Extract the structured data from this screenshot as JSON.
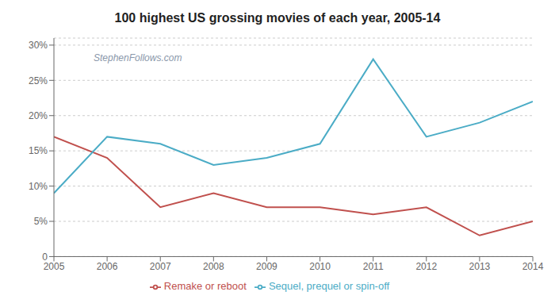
{
  "chart_data": {
    "type": "line",
    "title": "100 highest US grossing movies of each year, 2005-14",
    "annotations": [
      "StephenFollows.com"
    ],
    "x": [
      2005,
      2006,
      2007,
      2008,
      2009,
      2010,
      2011,
      2012,
      2013,
      2014
    ],
    "series": [
      {
        "name": "Remake or reboot",
        "color": "#c0504d",
        "values": [
          0.17,
          0.14,
          0.07,
          0.09,
          0.07,
          0.07,
          0.06,
          0.07,
          0.03,
          0.05
        ]
      },
      {
        "name": "Sequel, prequel or spin-off",
        "color": "#4bacc6",
        "values": [
          0.09,
          0.17,
          0.16,
          0.13,
          0.14,
          0.16,
          0.28,
          0.17,
          0.19,
          0.22
        ]
      }
    ],
    "xlim": [
      2005,
      2014
    ],
    "xticks": [
      2005,
      2006,
      2007,
      2008,
      2009,
      2010,
      2011,
      2012,
      2013,
      2014
    ],
    "ylim": [
      0,
      0.31
    ],
    "yticks": [
      0,
      {
        "value": 0.05,
        "label": "5%"
      },
      {
        "value": 0.1,
        "label": "10%"
      },
      {
        "value": 0.15,
        "label": "15%"
      },
      {
        "value": 0.2,
        "label": "20%"
      },
      {
        "value": 0.25,
        "label": "25%"
      },
      {
        "value": 0.3,
        "label": "30%"
      }
    ],
    "grid": true,
    "legend": "bottom"
  }
}
